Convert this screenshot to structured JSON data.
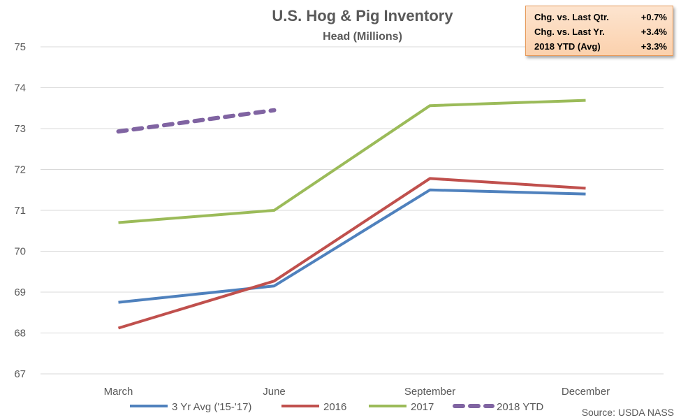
{
  "chart_data": {
    "type": "line",
    "title": "U.S. Hog & Pig Inventory",
    "subtitle": "Head (Millions)",
    "categories": [
      "March",
      "June",
      "September",
      "December"
    ],
    "ylim": [
      67,
      75
    ],
    "yticks": [
      67,
      68,
      69,
      70,
      71,
      72,
      73,
      74,
      75
    ],
    "grid": true,
    "legend_position": "bottom",
    "series": [
      {
        "name": "3 Yr Avg ('15-'17)",
        "color": "#4f81bd",
        "dashed": false,
        "values": [
          68.75,
          69.15,
          71.5,
          71.4
        ]
      },
      {
        "name": "2016",
        "color": "#c0504d",
        "dashed": false,
        "values": [
          68.12,
          69.27,
          71.78,
          71.54
        ]
      },
      {
        "name": "2017",
        "color": "#9bbb59",
        "dashed": false,
        "values": [
          70.7,
          71.0,
          73.56,
          73.69
        ]
      },
      {
        "name": "2018 YTD",
        "color": "#8064a2",
        "dashed": true,
        "values": [
          72.93,
          73.45,
          null,
          null
        ]
      }
    ],
    "source": "Source: USDA NASS"
  },
  "stats_box": {
    "rows": [
      {
        "label": "Chg. vs. Last Qtr.",
        "value": "+0.7%"
      },
      {
        "label": "Chg. vs. Last Yr.",
        "value": "+3.4%"
      },
      {
        "label": "2018 YTD (Avg)",
        "value": "+3.3%"
      }
    ]
  }
}
